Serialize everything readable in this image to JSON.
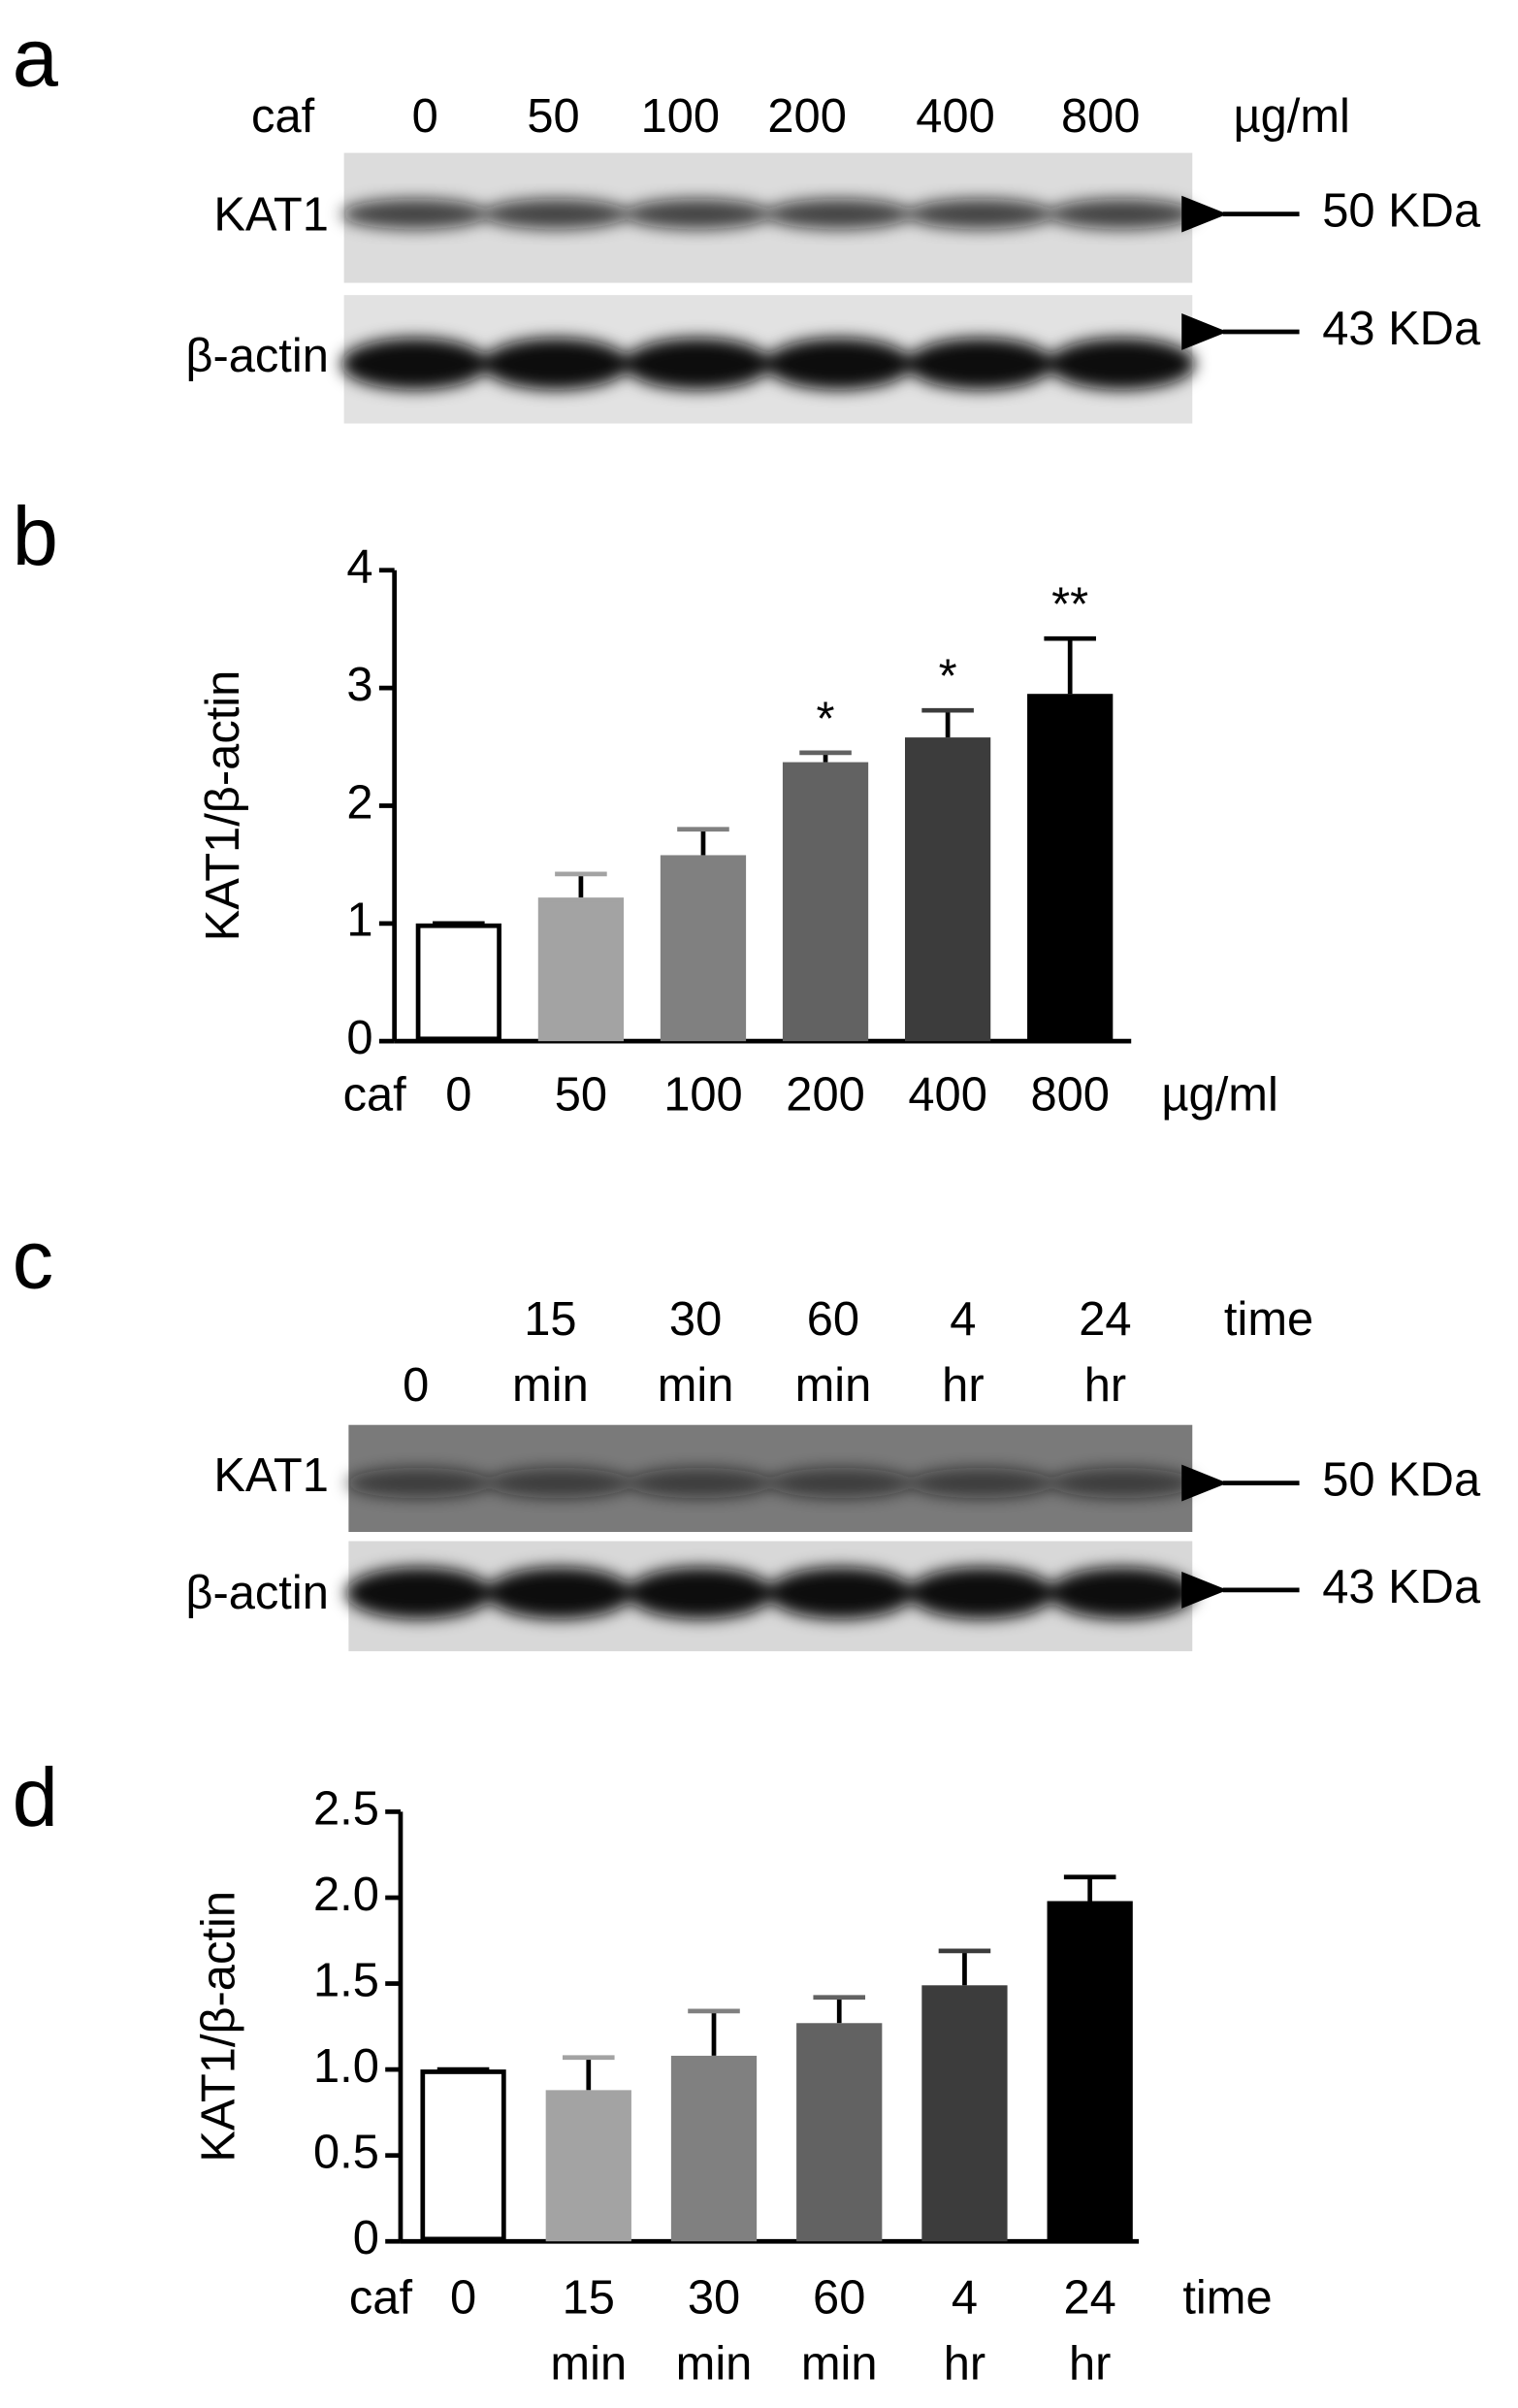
{
  "blots": [
    {
      "panel_label": "a",
      "lane_header": "caf",
      "lanes": [
        "0",
        "50",
        "100",
        "200",
        "400",
        "800"
      ],
      "unit": "µg/ml",
      "rows": [
        {
          "label": "KAT1",
          "size": "50 KDa"
        },
        {
          "label": "β-actin",
          "size": "43 KDa"
        }
      ]
    },
    {
      "panel_label": "c",
      "lanes": [
        "0",
        "15 min",
        "30 min",
        "60 min",
        "4 hr",
        "24 hr"
      ],
      "unit": "time",
      "rows": [
        {
          "label": "KAT1",
          "size": "50 KDa"
        },
        {
          "label": "β-actin",
          "size": "43 KDa"
        }
      ]
    }
  ],
  "chart_data": [
    {
      "type": "bar",
      "panel_label": "b",
      "y_label": "KAT1/β-actin",
      "x_prefix": "caf",
      "x_unit": "µg/ml",
      "categories": [
        "0",
        "50",
        "100",
        "200",
        "400",
        "800"
      ],
      "values": [
        1.0,
        1.22,
        1.58,
        2.37,
        2.58,
        2.95
      ],
      "errors": [
        0,
        0.2,
        0.22,
        0.08,
        0.23,
        0.47
      ],
      "significance": [
        null,
        null,
        null,
        "*",
        "*",
        "**"
      ],
      "colors": [
        "#ffffff",
        "#a3a3a3",
        "#808080",
        "#626262",
        "#3c3c3c",
        "#000000"
      ],
      "edgecolor": "#000000",
      "ylim": [
        0,
        4
      ],
      "yticks": [
        0,
        1,
        2,
        3,
        4
      ]
    },
    {
      "type": "bar",
      "panel_label": "d",
      "y_label": "KAT1/β-actin",
      "x_prefix": "caf",
      "x_unit": "time",
      "categories": [
        "0",
        "15 min",
        "30 min",
        "60 min",
        "4 hr",
        "24 hr"
      ],
      "values": [
        1.0,
        0.88,
        1.08,
        1.27,
        1.49,
        1.98
      ],
      "errors": [
        0,
        0.19,
        0.26,
        0.15,
        0.2,
        0.14
      ],
      "colors": [
        "#ffffff",
        "#a3a3a3",
        "#808080",
        "#626262",
        "#3c3c3c",
        "#000000"
      ],
      "edgecolor": "#000000",
      "ylim": [
        0,
        2.5
      ],
      "yticks": [
        0,
        0.5,
        {
          "value": 1,
          "label": "1.0"
        },
        1.5,
        {
          "value": 2,
          "label": "2.0"
        },
        2.5
      ]
    }
  ]
}
